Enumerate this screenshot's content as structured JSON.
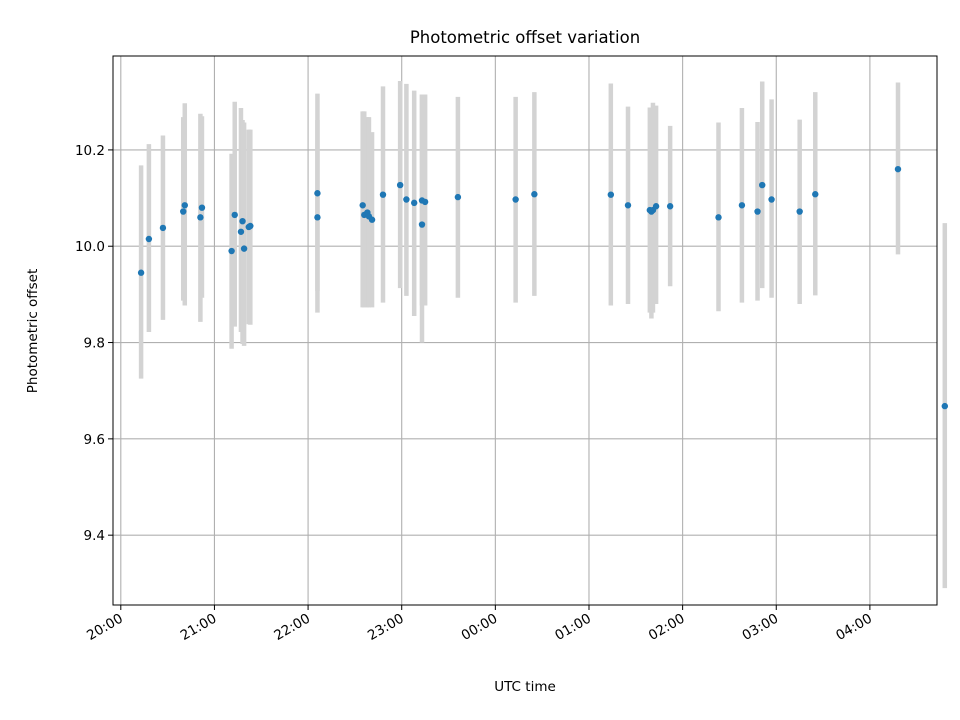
{
  "chart_data": {
    "type": "scatter",
    "title": "Photometric offset variation",
    "xlabel": "UTC time",
    "ylabel": "Photometric offset",
    "x_is_time": true,
    "xlim": [
      "19:55",
      "04:43"
    ],
    "ylim": [
      9.255,
      10.395
    ],
    "x_ticks": [
      "20:00",
      "21:00",
      "22:00",
      "23:00",
      "00:00",
      "01:00",
      "02:00",
      "03:00",
      "04:00"
    ],
    "y_ticks": [
      "9.4",
      "9.6",
      "9.8",
      "10.0",
      "10.2"
    ],
    "grid": true,
    "colors": {
      "points": "#1f77b4",
      "errorbars": "#d3d3d3",
      "grid": "#b0b0b0"
    },
    "series": [
      {
        "x": [
          "20:13",
          "20:18",
          "20:27",
          "20:40",
          "20:41",
          "20:51",
          "20:52",
          "21:11",
          "21:13",
          "21:17",
          "21:18",
          "21:19",
          "21:22",
          "21:23",
          "22:06",
          "22:06",
          "22:35",
          "22:36",
          "22:38",
          "22:39",
          "22:41",
          "22:48",
          "22:59",
          "23:03",
          "23:08",
          "23:13",
          "23:13",
          "23:15",
          "23:36",
          "00:13",
          "00:25",
          "01:14",
          "01:25",
          "01:39",
          "01:40",
          "01:41",
          "01:43",
          "01:52",
          "02:23",
          "02:38",
          "02:48",
          "02:51",
          "02:57",
          "03:15",
          "03:25",
          "04:18",
          "04:48"
        ],
        "y": [
          9.945,
          10.015,
          10.038,
          10.072,
          10.085,
          10.06,
          10.08,
          9.99,
          10.065,
          10.03,
          10.052,
          9.995,
          10.04,
          10.042,
          10.11,
          10.06,
          10.085,
          10.065,
          10.07,
          10.062,
          10.055,
          10.107,
          10.127,
          10.097,
          10.09,
          10.045,
          10.095,
          10.092,
          10.102,
          10.097,
          10.108,
          10.107,
          10.085,
          10.075,
          10.072,
          10.075,
          10.083,
          10.083,
          10.06,
          10.085,
          10.072,
          10.127,
          10.097,
          10.072,
          10.108,
          10.16,
          9.668
        ],
        "err_low": [
          9.725,
          9.822,
          9.847,
          9.887,
          9.877,
          9.843,
          9.893,
          9.787,
          9.833,
          9.822,
          9.797,
          9.793,
          9.838,
          9.837,
          9.907,
          9.862,
          9.873,
          9.873,
          9.873,
          9.873,
          9.873,
          9.883,
          9.913,
          9.897,
          9.855,
          9.8,
          9.877,
          9.877,
          9.893,
          9.883,
          9.897,
          9.877,
          9.88,
          9.862,
          9.85,
          9.862,
          9.88,
          9.917,
          9.865,
          9.883,
          9.887,
          9.913,
          9.893,
          9.88,
          9.898,
          9.983,
          9.29
        ],
        "err_high": [
          10.168,
          10.212,
          10.23,
          10.268,
          10.297,
          10.275,
          10.27,
          10.192,
          10.3,
          10.287,
          10.262,
          10.257,
          10.242,
          10.242,
          10.317,
          10.262,
          10.28,
          10.28,
          10.268,
          10.268,
          10.237,
          10.332,
          10.343,
          10.337,
          10.323,
          10.315,
          10.315,
          10.315,
          10.31,
          10.31,
          10.32,
          10.338,
          10.29,
          10.288,
          10.288,
          10.298,
          10.292,
          10.25,
          10.257,
          10.287,
          10.258,
          10.342,
          10.305,
          10.263,
          10.32,
          10.34,
          10.048
        ]
      }
    ]
  }
}
